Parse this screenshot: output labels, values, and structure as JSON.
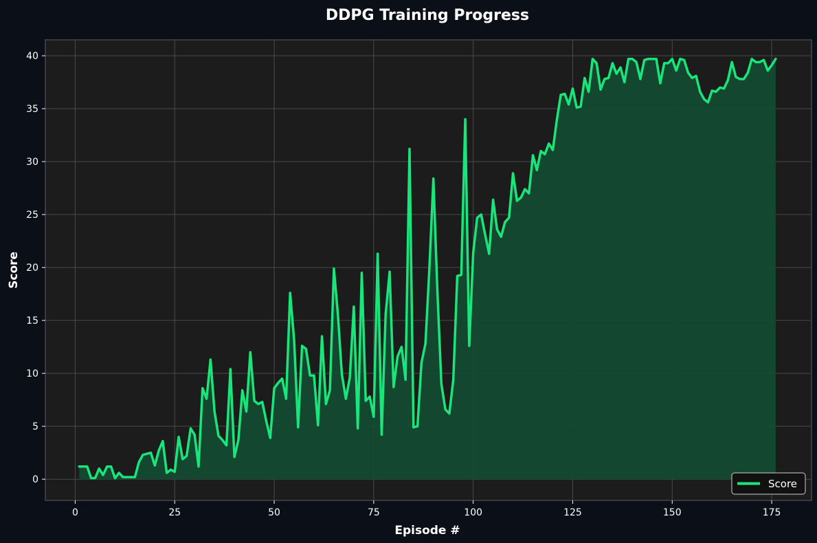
{
  "chart_data": {
    "type": "line",
    "title": "DDPG Training Progress",
    "xlabel": "Episode #",
    "ylabel": "Score",
    "xlim": [
      -7.5,
      185
    ],
    "ylim": [
      -2,
      41.5
    ],
    "xticks": [
      0,
      25,
      50,
      75,
      100,
      125,
      150,
      175
    ],
    "yticks": [
      0,
      5,
      10,
      15,
      20,
      25,
      30,
      35,
      40
    ],
    "grid": true,
    "legend_position": "bottom-right",
    "colors": {
      "figure_background": "#0b0f17",
      "plot_background": "#1c1c1c",
      "line": "#19e57a",
      "fill": "#144a31",
      "grid": "#4a4a4a",
      "frame": "#3a3a3a",
      "text": "#ffffff"
    },
    "series": [
      {
        "name": "Score",
        "x": [
          1,
          2,
          3,
          4,
          5,
          6,
          7,
          8,
          9,
          10,
          11,
          12,
          13,
          14,
          15,
          16,
          17,
          18,
          19,
          20,
          21,
          22,
          23,
          24,
          25,
          26,
          27,
          28,
          29,
          30,
          31,
          32,
          33,
          34,
          35,
          36,
          37,
          38,
          39,
          40,
          41,
          42,
          43,
          44,
          45,
          46,
          47,
          48,
          49,
          50,
          51,
          52,
          53,
          54,
          55,
          56,
          57,
          58,
          59,
          60,
          61,
          62,
          63,
          64,
          65,
          66,
          67,
          68,
          69,
          70,
          71,
          72,
          73,
          74,
          75,
          76,
          77,
          78,
          79,
          80,
          81,
          82,
          83,
          84,
          85,
          86,
          87,
          88,
          89,
          90,
          91,
          92,
          93,
          94,
          95,
          96,
          97,
          98,
          99,
          100,
          101,
          102,
          103,
          104,
          105,
          106,
          107,
          108,
          109,
          110,
          111,
          112,
          113,
          114,
          115,
          116,
          117,
          118,
          119,
          120,
          121,
          122,
          123,
          124,
          125,
          126,
          127,
          128,
          129,
          130,
          131,
          132,
          133,
          134,
          135,
          136,
          137,
          138,
          139,
          140,
          141,
          142,
          143,
          144,
          145,
          146,
          147,
          148,
          149,
          150,
          151,
          152,
          153,
          154,
          155,
          156,
          157,
          158,
          159,
          160,
          161,
          162,
          163,
          164,
          165,
          166,
          167,
          168,
          169,
          170,
          171,
          172,
          173,
          174,
          175,
          176
        ],
        "values": [
          1.2,
          1.2,
          1.2,
          0.1,
          0.1,
          1.0,
          0.4,
          1.2,
          1.2,
          0.1,
          0.6,
          0.2,
          0.2,
          0.2,
          0.2,
          1.6,
          2.3,
          2.4,
          2.5,
          1.3,
          2.7,
          3.6,
          0.6,
          0.9,
          0.7,
          4.0,
          1.9,
          2.2,
          4.8,
          4.2,
          1.2,
          8.6,
          7.6,
          11.3,
          6.4,
          4.1,
          3.7,
          3.2,
          10.4,
          2.1,
          3.7,
          8.4,
          6.4,
          12.0,
          7.4,
          7.1,
          7.3,
          5.5,
          3.9,
          8.6,
          9.1,
          9.5,
          7.6,
          17.6,
          13.2,
          4.9,
          12.6,
          12.3,
          9.8,
          9.8,
          5.1,
          13.5,
          7.1,
          8.4,
          19.9,
          15.6,
          9.9,
          7.6,
          9.6,
          16.3,
          4.8,
          19.5,
          7.4,
          7.8,
          5.9,
          21.3,
          4.2,
          15.6,
          19.6,
          8.7,
          11.6,
          12.5,
          9.4,
          31.2,
          4.9,
          5.0,
          11.0,
          12.8,
          20.0,
          28.4,
          17.8,
          9.0,
          6.6,
          6.2,
          9.4,
          19.2,
          19.3,
          34.0,
          12.6,
          21.4,
          24.7,
          25.0,
          23.1,
          21.3,
          26.4,
          23.6,
          22.9,
          24.3,
          24.7,
          28.9,
          26.3,
          26.6,
          27.4,
          27.0,
          30.6,
          29.2,
          31.0,
          30.7,
          31.7,
          31.1,
          33.9,
          36.3,
          36.4,
          35.4,
          36.9,
          35.1,
          35.2,
          37.9,
          36.6,
          39.7,
          39.3,
          36.8,
          37.8,
          37.9,
          39.3,
          38.3,
          38.9,
          37.5,
          39.7,
          39.7,
          39.4,
          37.8,
          39.6,
          39.7,
          39.7,
          39.7,
          37.4,
          39.3,
          39.3,
          39.7,
          38.6,
          39.7,
          39.6,
          38.4,
          37.9,
          38.1,
          36.6,
          35.9,
          35.6,
          36.7,
          36.6,
          37.0,
          36.9,
          37.7,
          39.4,
          38.0,
          37.8,
          37.8,
          38.4,
          39.7,
          39.4,
          39.4,
          39.6,
          38.6,
          39.1,
          39.7
        ]
      }
    ]
  }
}
